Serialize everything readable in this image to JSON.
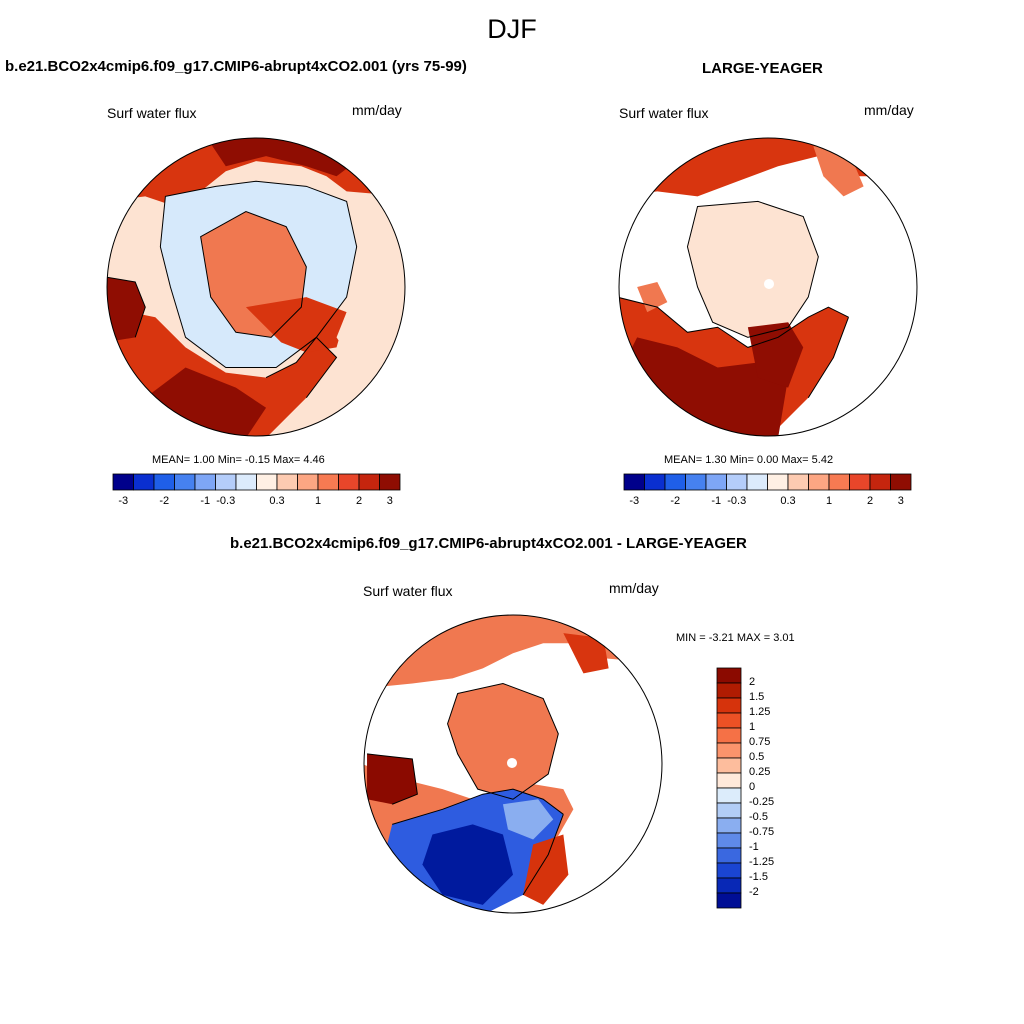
{
  "title": "DJF",
  "panels": [
    {
      "title": "b.e21.BCO2x4cmip6.f09_g17.CMIP6-abrupt4xCO2.001 (yrs 75-99)",
      "left_label": "Surf water flux",
      "right_label": "mm/day",
      "stats_text": "MEAN=   1.00  Min=   -0.15  Max=    4.46",
      "colorbar": {
        "ticks": [
          "-3",
          "-2",
          "-1",
          "-0.3",
          "0.3",
          "1",
          "2",
          "3"
        ],
        "colors": [
          "#00008b",
          "#0a2fd0",
          "#1f5fe8",
          "#4681f0",
          "#7ea6f6",
          "#b4cdfa",
          "#dcebfc",
          "#fff0e4",
          "#fdcbb1",
          "#fca683",
          "#f77a52",
          "#e8462a",
          "#c5250e",
          "#8f0d02"
        ]
      }
    },
    {
      "title": "LARGE-YEAGER",
      "left_label": "Surf water flux",
      "right_label": "mm/day",
      "stats_text": "MEAN=   1.30  Min=   0.00  Max=    5.42",
      "colorbar": {
        "ticks": [
          "-3",
          "-2",
          "-1",
          "-0.3",
          "0.3",
          "1",
          "2",
          "3"
        ],
        "colors": [
          "#00008b",
          "#0a2fd0",
          "#1f5fe8",
          "#4681f0",
          "#7ea6f6",
          "#b4cdfa",
          "#dcebfc",
          "#fff0e4",
          "#fdcbb1",
          "#fca683",
          "#f77a52",
          "#e8462a",
          "#c5250e",
          "#8f0d02"
        ]
      }
    }
  ],
  "difference": {
    "title": "b.e21.BCO2x4cmip6.f09_g17.CMIP6-abrupt4xCO2.001 - LARGE-YEAGER",
    "left_label": "Surf water flux",
    "right_label": "mm/day",
    "minmax_text": "MIN =  -3.21 MAX =    3.01",
    "colorbar": {
      "ticks": [
        "2",
        "1.5",
        "1.25",
        "1",
        "0.75",
        "0.5",
        "0.25",
        "0",
        "-0.25",
        "-0.5",
        "-0.75",
        "-1",
        "-1.25",
        "-1.5",
        "-2"
      ],
      "colors": [
        "#8b0a00",
        "#b01c02",
        "#d6330c",
        "#ec5125",
        "#f57146",
        "#fb946c",
        "#fdbd9d",
        "#ffe9da",
        "#dcecfb",
        "#b2cdf6",
        "#8aaef0",
        "#5f8ae8",
        "#3a68e0",
        "#1a45d2",
        "#0828b6",
        "#000e95"
      ]
    }
  },
  "colors": {
    "deep_red": "#8f0d02",
    "red": "#d8350f",
    "orange": "#f07850",
    "peach": "#fde3d2",
    "light_blue": "#d6e9fb",
    "blue": "#2e5ce0",
    "deep_blue": "#001a9e"
  }
}
